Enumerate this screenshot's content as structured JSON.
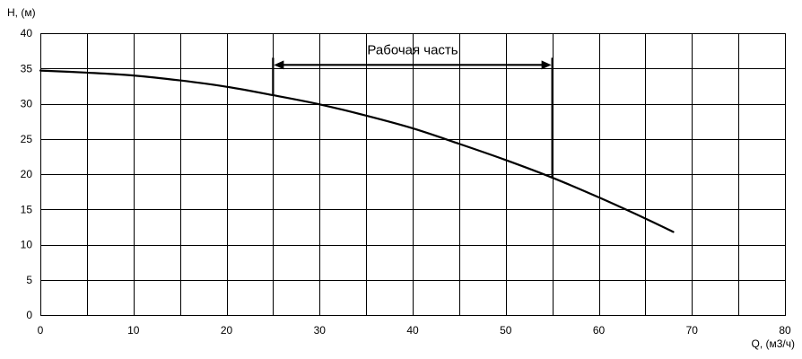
{
  "chart_data": {
    "type": "line",
    "xlabel": "Q, (м3/ч)",
    "ylabel": "H, (м)",
    "xlim": [
      0,
      80
    ],
    "ylim": [
      0,
      40
    ],
    "xticks": [
      0,
      10,
      20,
      30,
      40,
      50,
      60,
      70,
      80
    ],
    "yticks": [
      0,
      5,
      10,
      15,
      20,
      25,
      30,
      35,
      40
    ],
    "xgrid_step": 5,
    "ygrid_step": 5,
    "grid": true,
    "series": [
      {
        "x": [
          0,
          5,
          10,
          15,
          20,
          25,
          30,
          35,
          40,
          45,
          50,
          55,
          60,
          65,
          68
        ],
        "y": [
          34.7,
          34.4,
          34.0,
          33.3,
          32.4,
          31.2,
          29.9,
          28.3,
          26.5,
          24.3,
          22.0,
          19.5,
          16.7,
          13.7,
          11.8
        ]
      }
    ],
    "annotation": {
      "label": "Рабочая часть",
      "x_start": 25,
      "x_end": 55,
      "arrow_y": 35.5
    }
  }
}
